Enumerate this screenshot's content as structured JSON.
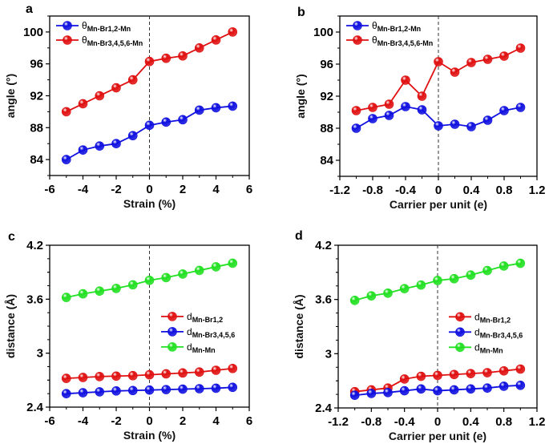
{
  "chart_data": [
    {
      "panel": "a",
      "type": "line",
      "xlabel": "Strain (%)",
      "ylabel": "angle (°)",
      "xlim": [
        -6,
        6
      ],
      "ylim": [
        82,
        102
      ],
      "xticks": [
        -6,
        -4,
        -2,
        0,
        2,
        4,
        6
      ],
      "xtick_labels": [
        "-6",
        "-4",
        "-2",
        "0",
        "2",
        "4",
        "6"
      ],
      "yticks": [
        84,
        88,
        92,
        96,
        100
      ],
      "ytick_labels": [
        "84",
        "88",
        "92",
        "96",
        "100"
      ],
      "vline": 0,
      "legend_placement": "top-left",
      "x": [
        -5,
        -4,
        -3,
        -2,
        -1,
        0,
        1,
        2,
        3,
        4,
        5
      ],
      "series": [
        {
          "name": "θ",
          "name_sub": "Mn-Br1,2-Mn",
          "color": "#1010e0",
          "values": [
            84,
            85.2,
            85.7,
            86,
            87,
            88.3,
            88.7,
            89,
            90.2,
            90.5,
            90.7
          ]
        },
        {
          "name": "θ",
          "name_sub": "Mn-Br3,4,5,6-Mn",
          "color": "#e01010",
          "values": [
            90,
            91,
            92,
            93,
            94,
            96.3,
            96.7,
            97,
            98,
            99,
            100
          ]
        }
      ]
    },
    {
      "panel": "b",
      "type": "line",
      "xlabel": "Carrier per unit (e)",
      "ylabel": "angle (°)",
      "xlim": [
        -1.2,
        1.2
      ],
      "ylim": [
        82,
        102
      ],
      "xticks": [
        -1.2,
        -0.8,
        -0.4,
        0,
        0.4,
        0.8,
        1.2
      ],
      "xtick_labels": [
        "-1.2",
        "-0.8",
        "-0.4",
        "0",
        "0.4",
        "0.8",
        "1.2"
      ],
      "yticks": [
        84,
        88,
        92,
        96,
        100
      ],
      "ytick_labels": [
        "84",
        "88",
        "92",
        "96",
        "100"
      ],
      "vline": 0,
      "legend_placement": "top-left",
      "x": [
        -1,
        -0.8,
        -0.6,
        -0.4,
        -0.2,
        0,
        0.2,
        0.4,
        0.6,
        0.8,
        1
      ],
      "series": [
        {
          "name": "θ",
          "name_sub": "Mn-Br1,2-Mn",
          "color": "#1010e0",
          "values": [
            88,
            89.2,
            89.6,
            90.7,
            90.3,
            88.3,
            88.5,
            88.2,
            89,
            90.2,
            90.6
          ]
        },
        {
          "name": "θ",
          "name_sub": "Mn-Br3,4,5,6-Mn",
          "color": "#e01010",
          "values": [
            90.2,
            90.6,
            91,
            94,
            92,
            96.3,
            95,
            96.2,
            96.6,
            97,
            98
          ]
        }
      ]
    },
    {
      "panel": "c",
      "type": "line",
      "xlabel": "Strain (%)",
      "ylabel": "distance (Å)",
      "xlim": [
        -6,
        6
      ],
      "ylim": [
        2.4,
        4.2
      ],
      "xticks": [
        -6,
        -4,
        -2,
        0,
        2,
        4,
        6
      ],
      "xtick_labels": [
        "-6",
        "-4",
        "-2",
        "0",
        "2",
        "4",
        "6"
      ],
      "yticks": [
        2.4,
        3.0,
        3.6,
        4.2
      ],
      "ytick_labels": [
        "2.4",
        "3",
        "3.6",
        "4.2"
      ],
      "vline": 0,
      "legend_placement": "center-right",
      "x": [
        -5,
        -4,
        -3,
        -2,
        -1,
        0,
        1,
        2,
        3,
        4,
        5
      ],
      "series": [
        {
          "name": "d",
          "name_sub": "Mn-Br1,2",
          "color": "#e01010",
          "values": [
            2.72,
            2.73,
            2.74,
            2.745,
            2.75,
            2.76,
            2.77,
            2.78,
            2.79,
            2.81,
            2.83
          ]
        },
        {
          "name": "d",
          "name_sub": "Mn-Br3,4,5,6",
          "color": "#1010e0",
          "values": [
            2.55,
            2.56,
            2.57,
            2.58,
            2.585,
            2.59,
            2.595,
            2.6,
            2.605,
            2.61,
            2.62
          ]
        },
        {
          "name": "d",
          "name_sub": "Mn-Mn",
          "color": "#22e022",
          "values": [
            3.62,
            3.66,
            3.69,
            3.72,
            3.76,
            3.81,
            3.84,
            3.88,
            3.92,
            3.96,
            4.0
          ]
        }
      ]
    },
    {
      "panel": "d",
      "type": "line",
      "xlabel": "Carrier per unit (e)",
      "ylabel": "distance (Å)",
      "xlim": [
        -1.2,
        1.2
      ],
      "ylim": [
        2.4,
        4.2
      ],
      "xticks": [
        -1.2,
        -0.8,
        -0.4,
        0,
        0.4,
        0.8,
        1.2
      ],
      "xtick_labels": [
        "-1.2",
        "-0.8",
        "-0.4",
        "0",
        "0.4",
        "0.8",
        "1.2"
      ],
      "yticks": [
        2.4,
        3.0,
        3.6,
        4.2
      ],
      "ytick_labels": [
        "2.4",
        "3",
        "3.6",
        "4.2"
      ],
      "vline": 0,
      "legend_placement": "center-right",
      "x": [
        -1,
        -0.8,
        -0.6,
        -0.4,
        -0.2,
        0,
        0.2,
        0.4,
        0.6,
        0.8,
        1
      ],
      "series": [
        {
          "name": "d",
          "name_sub": "Mn-Br1,2",
          "color": "#e01010",
          "values": [
            2.58,
            2.6,
            2.62,
            2.72,
            2.75,
            2.76,
            2.77,
            2.78,
            2.79,
            2.81,
            2.83
          ]
        },
        {
          "name": "d",
          "name_sub": "Mn-Br3,4,5,6",
          "color": "#1010e0",
          "values": [
            2.54,
            2.56,
            2.57,
            2.59,
            2.61,
            2.59,
            2.6,
            2.61,
            2.62,
            2.64,
            2.65
          ]
        },
        {
          "name": "d",
          "name_sub": "Mn-Mn",
          "color": "#22e022",
          "values": [
            3.59,
            3.64,
            3.67,
            3.72,
            3.76,
            3.81,
            3.83,
            3.87,
            3.92,
            3.97,
            4.0
          ]
        }
      ]
    }
  ]
}
